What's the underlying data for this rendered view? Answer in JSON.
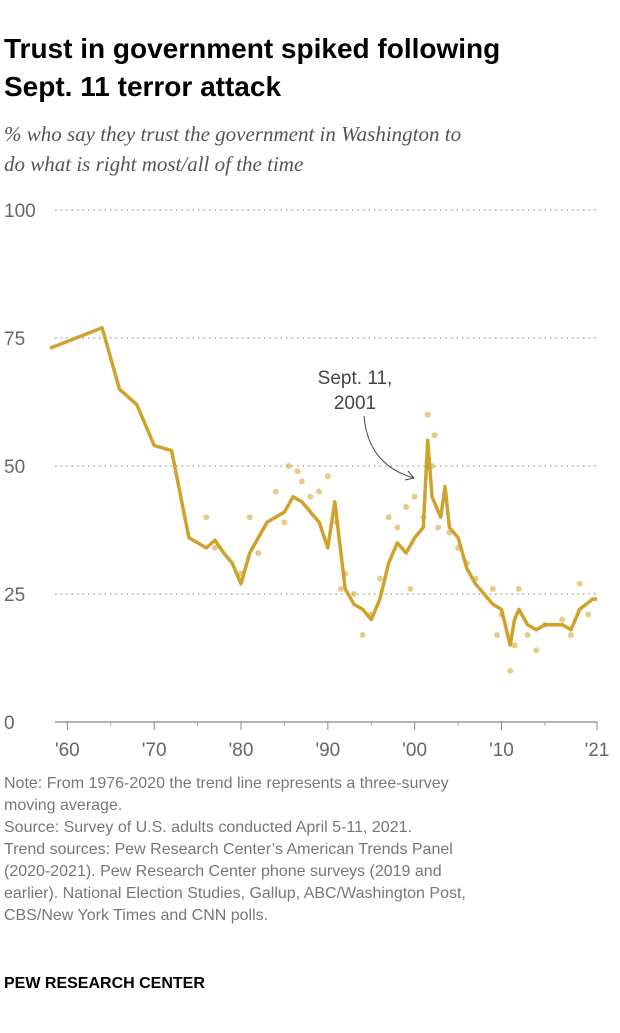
{
  "chart_data": {
    "type": "line",
    "title": [
      "Trust in government spiked following",
      "Sept. 11 terror attack"
    ],
    "subtitle": [
      "% who say they trust the government in Washington to",
      "do what is right most/all of the time"
    ],
    "annotation": [
      "Sept. 11,",
      "2001"
    ],
    "x": [
      1958,
      1964,
      1966,
      1968,
      1970,
      1972,
      1974,
      1976,
      1977,
      1978,
      1979,
      1980,
      1981,
      1983,
      1985,
      1986,
      1987,
      1988,
      1989,
      1990,
      1990.8,
      1992,
      1993,
      1994,
      1995,
      1996,
      1997,
      1998,
      1999,
      2000,
      2001,
      2001.5,
      2002,
      2003,
      2003.5,
      2004,
      2005,
      2006,
      2007,
      2008,
      2009,
      2010,
      2011,
      2011.5,
      2012,
      2013,
      2014,
      2015,
      2017,
      2018,
      2019,
      2020.5,
      2021
    ],
    "values": [
      73,
      77,
      65,
      62,
      54,
      53,
      36,
      34,
      35.5,
      33,
      31,
      27,
      33,
      39,
      41,
      44,
      43,
      41,
      39,
      34,
      43,
      26,
      23,
      22,
      20,
      24,
      31,
      35,
      33,
      36,
      38,
      55,
      44,
      40,
      46,
      38,
      36,
      30,
      27,
      25,
      23,
      22,
      15,
      20,
      22,
      19,
      18,
      19,
      19,
      18,
      22,
      24,
      24
    ],
    "points": {
      "x": [
        1976,
        1977,
        1980,
        1981,
        1982,
        1984,
        1985,
        1985.5,
        1986.5,
        1987,
        1988,
        1989,
        1990,
        1991,
        1991.5,
        1992,
        1993,
        1994,
        1995,
        1996,
        1997,
        1998,
        1999,
        1999.5,
        2000,
        2001,
        2001.5,
        2002,
        2002.3,
        2002.7,
        2004,
        2005,
        2006,
        2007,
        2009,
        2009.5,
        2010,
        2011,
        2011.5,
        2012,
        2013,
        2014,
        2015,
        2017,
        2018,
        2019,
        2020
      ],
      "y": [
        40,
        34,
        29,
        40,
        33,
        45,
        39,
        50,
        49,
        47,
        44,
        45,
        48,
        39,
        26,
        29,
        25,
        17,
        21,
        28,
        40,
        38,
        42,
        26,
        44,
        40,
        60,
        50,
        56,
        38,
        37,
        34,
        31,
        28,
        26,
        17,
        21,
        10,
        15,
        26,
        17,
        14,
        19,
        20,
        17,
        27,
        21
      ]
    },
    "color": "#cfa22b",
    "xlim": [
      1958,
      2021
    ],
    "ylim": [
      0,
      100
    ],
    "xticks": [
      {
        "value": 1960,
        "label": "'60"
      },
      {
        "value": 1970,
        "label": "'70"
      },
      {
        "value": 1980,
        "label": "'80"
      },
      {
        "value": 1990,
        "label": "'90"
      },
      {
        "value": 2000,
        "label": "'00"
      },
      {
        "value": 2010,
        "label": "'10"
      },
      {
        "value": 2021,
        "label": "'21"
      }
    ],
    "yticks": [
      0,
      25,
      50,
      75,
      100
    ],
    "grid": true
  },
  "notes": [
    "Note: From 1976-2020 the trend line represents a three-survey",
    "moving average.",
    "Source: Survey of U.S. adults conducted April 5-11, 2021.",
    "Trend sources: Pew Research Center’s American Trends Panel",
    "(2020-2021). Pew Research Center phone surveys (2019 and",
    "earlier). National Election Studies, Gallup, ABC/Washington Post,",
    "CBS/New York Times and CNN polls."
  ],
  "footer": "PEW RESEARCH CENTER"
}
